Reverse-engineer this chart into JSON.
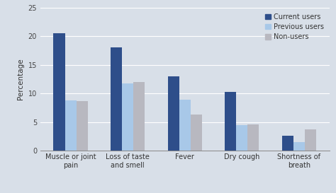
{
  "categories": [
    "Muscle or joint\npain",
    "Loss of taste\nand smell",
    "Fever",
    "Dry cough",
    "Shortness of\nbreath"
  ],
  "series": {
    "Current users": [
      20.5,
      18.0,
      13.0,
      10.3,
      2.6
    ],
    "Previous users": [
      8.8,
      11.7,
      8.9,
      4.4,
      1.5
    ],
    "Non-users": [
      8.6,
      12.0,
      6.3,
      4.6,
      3.7
    ]
  },
  "colors": {
    "Current users": "#2e4e8a",
    "Previous users": "#a8c8e8",
    "Non-users": "#b8b8c0"
  },
  "ylabel": "Percentage",
  "ylim": [
    0,
    25
  ],
  "yticks": [
    0,
    5,
    10,
    15,
    20,
    25
  ],
  "background_color": "#d8dfe8",
  "plot_bg_color": "#d8dfe8",
  "bar_width": 0.2,
  "legend_order": [
    "Current users",
    "Previous users",
    "Non-users"
  ],
  "axis_fontsize": 7.5,
  "tick_fontsize": 7.0,
  "legend_fontsize": 7.0
}
